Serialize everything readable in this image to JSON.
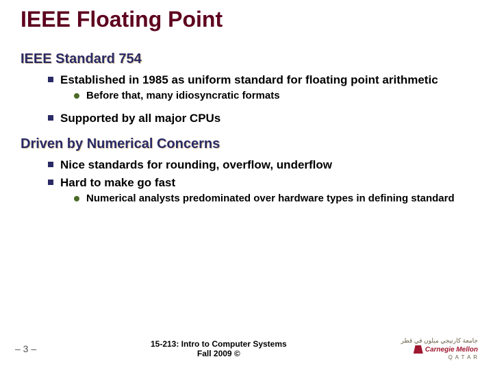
{
  "colors": {
    "title": "#5d001e",
    "heading": "#2a2a66",
    "heading_shadow": "#d8c8a0",
    "body_text": "#000000",
    "l1_bullet": "#2a2a66",
    "l2_bullet": "#4a6b28",
    "logo_red": "#a01830",
    "logo_tan": "#6b6048"
  },
  "fonts": {
    "title_size": 32,
    "heading_size": 20,
    "l1_size": 17,
    "l2_size": 15,
    "footer_center_size": 12,
    "pagenum_size": 14
  },
  "title": "IEEE Floating Point",
  "sections": [
    {
      "heading": "IEEE Standard 754",
      "items": [
        {
          "text": "Established in 1985 as uniform standard for floating point arithmetic",
          "sub": [
            {
              "text": "Before that, many idiosyncratic formats"
            }
          ]
        },
        {
          "text": "Supported by all major CPUs",
          "sub": []
        }
      ]
    },
    {
      "heading": "Driven by Numerical Concerns",
      "items": [
        {
          "text": "Nice standards for rounding, overflow, underflow",
          "sub": []
        },
        {
          "text": "Hard to make go fast",
          "sub": [
            {
              "text": "Numerical analysts predominated over hardware types in defining standard"
            }
          ]
        }
      ]
    }
  ],
  "footer": {
    "page": "– 3 –",
    "center_line1": "15-213: Intro to Computer Systems",
    "center_line2": "Fall 2009 ©",
    "logo_arabic": "جامعة كارنيجي ميلون في قطر",
    "logo_main": "Carnegie Mellon",
    "logo_sub": "Q A T A R"
  }
}
